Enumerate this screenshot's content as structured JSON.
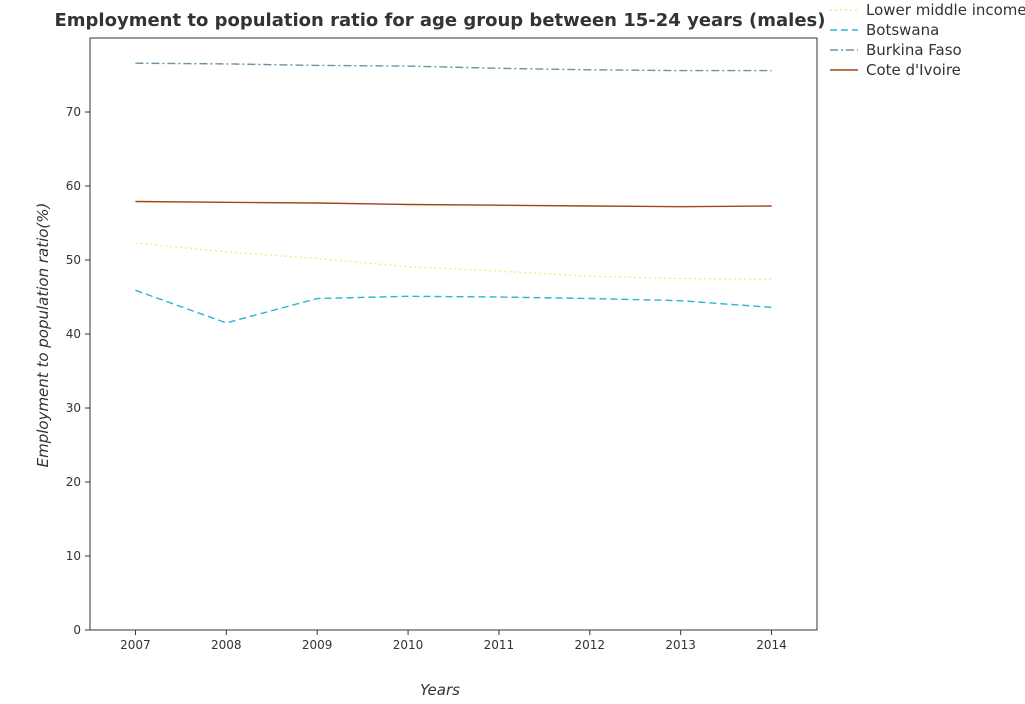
{
  "chart_data": {
    "type": "line",
    "title": "Employment to population ratio for age group between 15-24 years (males)",
    "xlabel": "Years",
    "ylabel": "Employment to population ratio(%)",
    "x": [
      "2007",
      "2008",
      "2009",
      "2010",
      "2011",
      "2012",
      "2013",
      "2014"
    ],
    "ylim": [
      0,
      80
    ],
    "yticks": [
      0,
      10,
      20,
      30,
      40,
      50,
      60,
      70
    ],
    "grid": false,
    "legend_position": "top-right",
    "series": [
      {
        "name": "Lower middle income",
        "color": "#e6ef8c",
        "dash": "dotted",
        "values": [
          52.3,
          51.1,
          50.2,
          49.1,
          48.5,
          47.8,
          47.5,
          47.4
        ]
      },
      {
        "name": "Botswana",
        "color": "#29b6d6",
        "dash": "dashed",
        "values": [
          45.9,
          41.5,
          44.8,
          45.1,
          45.0,
          44.8,
          44.5,
          43.6
        ]
      },
      {
        "name": "Burkina Faso",
        "color": "#6b93a8",
        "dash": "dashdot",
        "values": [
          76.6,
          76.5,
          76.3,
          76.2,
          75.9,
          75.7,
          75.6,
          75.6
        ]
      },
      {
        "name": "Cote d'Ivoire",
        "color": "#a0461a",
        "dash": "solid",
        "values": [
          57.9,
          57.8,
          57.7,
          57.5,
          57.4,
          57.3,
          57.2,
          57.3
        ]
      }
    ]
  }
}
